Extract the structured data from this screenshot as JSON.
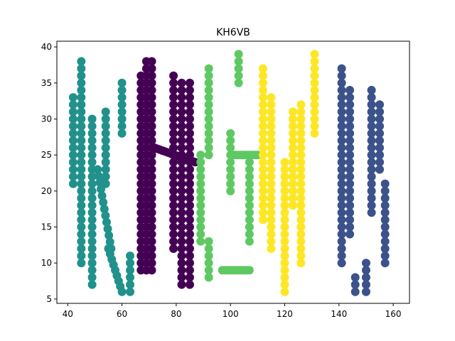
{
  "chart_data": {
    "type": "scatter",
    "title": "KH6VB",
    "xlabel": "",
    "ylabel": "",
    "xlim": [
      36,
      166
    ],
    "ylim": [
      4.4,
      40.8
    ],
    "xticks": [
      40,
      60,
      80,
      100,
      120,
      140,
      160
    ],
    "yticks": [
      5,
      10,
      15,
      20,
      25,
      30,
      35,
      40
    ],
    "grid": false,
    "marker_size": 6,
    "series": [
      {
        "color": "#21918c",
        "strokes": [
          [
            [
              45,
              38
            ],
            [
              45,
              10
            ]
          ],
          [
            [
              42,
              33
            ],
            [
              42,
              21
            ]
          ],
          [
            [
              49,
              30
            ],
            [
              49,
              7
            ]
          ],
          [
            [
              60,
              35
            ],
            [
              60,
              28
            ]
          ],
          [
            [
              54,
              31
            ],
            [
              54,
              21
            ]
          ],
          [
            [
              51,
              23
            ],
            [
              56,
              12
            ]
          ],
          [
            [
              55,
              12
            ],
            [
              60,
              6
            ]
          ],
          [
            [
              63,
              11
            ],
            [
              63,
              6
            ]
          ]
        ]
      },
      {
        "color": "#440154",
        "strokes": [
          [
            [
              69,
              38
            ],
            [
              69,
              9
            ]
          ],
          [
            [
              71,
              38
            ],
            [
              71,
              9
            ]
          ],
          [
            [
              67,
              36
            ],
            [
              67,
              9
            ]
          ],
          [
            [
              72,
              26
            ],
            [
              87,
              24
            ]
          ],
          [
            [
              79,
              36
            ],
            [
              79,
              12
            ]
          ],
          [
            [
              82,
              35
            ],
            [
              82,
              7
            ]
          ],
          [
            [
              85,
              35
            ],
            [
              85,
              7
            ]
          ]
        ]
      },
      {
        "color": "#5ec962",
        "strokes": [
          [
            [
              103,
              39
            ],
            [
              103,
              35
            ]
          ],
          [
            [
              92,
              37
            ],
            [
              92,
              25
            ]
          ],
          [
            [
              89,
              25
            ],
            [
              89,
              13
            ]
          ],
          [
            [
              92,
              13
            ],
            [
              92,
              8
            ]
          ],
          [
            [
              100,
              25
            ],
            [
              110,
              25
            ]
          ],
          [
            [
              107,
              25
            ],
            [
              107,
              13
            ]
          ],
          [
            [
              97,
              9
            ],
            [
              107,
              9
            ]
          ],
          [
            [
              100,
              28
            ],
            [
              100,
              20
            ]
          ]
        ]
      },
      {
        "color": "#fde725",
        "strokes": [
          [
            [
              112,
              37
            ],
            [
              112,
              16
            ]
          ],
          [
            [
              115,
              33
            ],
            [
              115,
              12
            ]
          ],
          [
            [
              120,
              24
            ],
            [
              120,
              6
            ]
          ],
          [
            [
              126,
              32
            ],
            [
              126,
              10
            ]
          ],
          [
            [
              131,
              39
            ],
            [
              131,
              28
            ]
          ],
          [
            [
              123,
              31
            ],
            [
              123,
              18
            ]
          ]
        ]
      },
      {
        "color": "#3b528b",
        "strokes": [
          [
            [
              141,
              37
            ],
            [
              141,
              10
            ]
          ],
          [
            [
              144,
              34
            ],
            [
              144,
              14
            ]
          ],
          [
            [
              152,
              34
            ],
            [
              152,
              26
            ]
          ],
          [
            [
              155,
              32
            ],
            [
              155,
              23
            ]
          ],
          [
            [
              152,
              25
            ],
            [
              152,
              17
            ]
          ],
          [
            [
              157,
              21
            ],
            [
              157,
              10
            ]
          ],
          [
            [
              150,
              10
            ],
            [
              150,
              6
            ]
          ],
          [
            [
              146,
              8
            ],
            [
              146,
              6
            ]
          ]
        ]
      }
    ]
  }
}
